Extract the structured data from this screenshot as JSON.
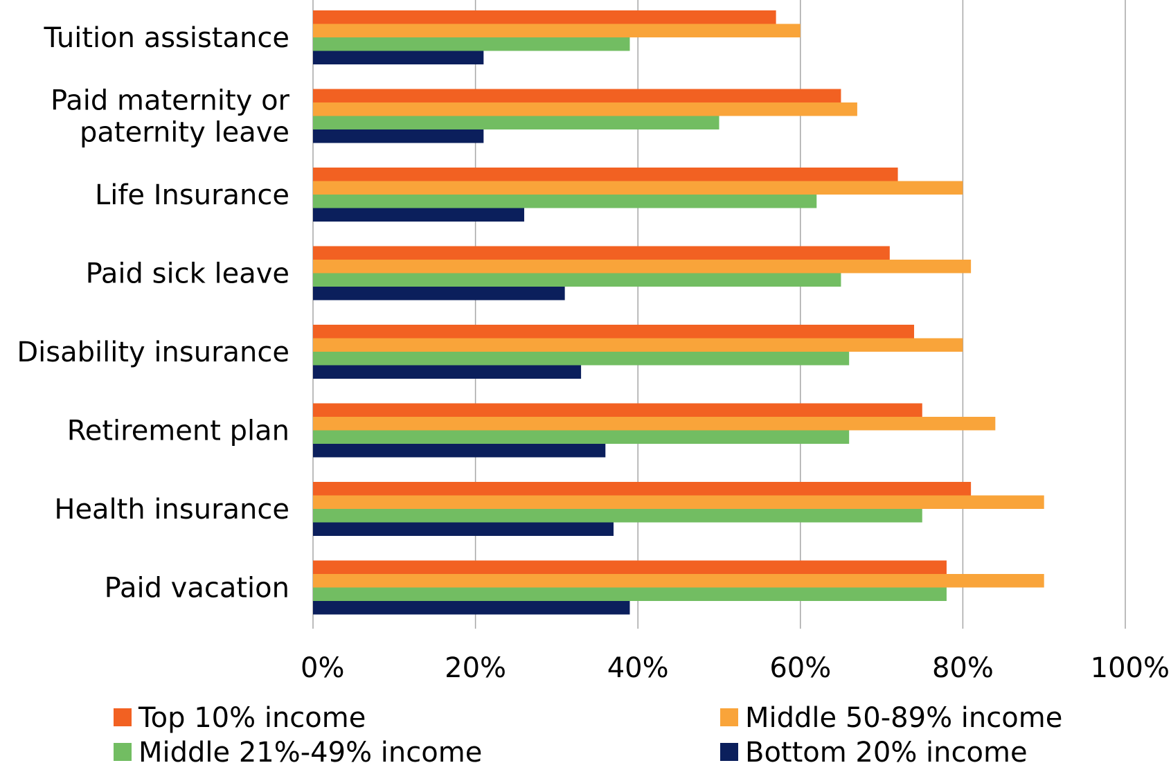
{
  "chart_data": {
    "type": "bar",
    "orientation": "horizontal",
    "title": "",
    "xlabel": "",
    "ylabel": "",
    "categories": [
      "Tuition assistance",
      "Paid maternity or paternity leave",
      "Life Insurance",
      "Paid sick leave",
      "Disability insurance",
      "Retirement plan",
      "Health insurance",
      "Paid vacation"
    ],
    "category_lines": [
      [
        "Tuition assistance"
      ],
      [
        "Paid maternity or",
        "paternity leave"
      ],
      [
        "Life Insurance"
      ],
      [
        "Paid sick leave"
      ],
      [
        "Disability insurance"
      ],
      [
        "Retirement plan"
      ],
      [
        "Health insurance"
      ],
      [
        "Paid vacation"
      ]
    ],
    "series": [
      {
        "name": "Top 10% income",
        "color": "#f26122",
        "values": [
          57,
          65,
          72,
          71,
          74,
          75,
          81,
          78
        ]
      },
      {
        "name": "Middle 50-89% income",
        "color": "#f9a43a",
        "values": [
          60,
          67,
          80,
          81,
          80,
          84,
          90,
          90
        ]
      },
      {
        "name": "Middle 21%-49% income",
        "color": "#72bd62",
        "values": [
          39,
          50,
          62,
          65,
          66,
          66,
          75,
          78
        ]
      },
      {
        "name": "Bottom 20% income",
        "color": "#0b1f5c",
        "values": [
          21,
          21,
          26,
          31,
          33,
          36,
          37,
          39
        ]
      }
    ],
    "xlim": [
      0,
      100
    ],
    "x_ticks": [
      0,
      20,
      40,
      60,
      80,
      100
    ],
    "x_tick_labels": [
      "0%",
      "20%",
      "40%",
      "60%",
      "80%",
      "100%"
    ],
    "grid": true,
    "legend_position": "bottom"
  }
}
